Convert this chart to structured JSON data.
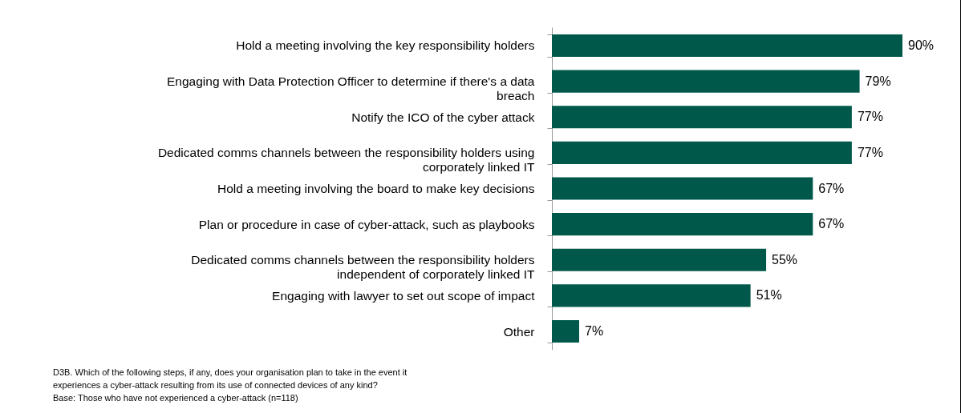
{
  "chart_data": {
    "type": "bar",
    "orientation": "horizontal",
    "categories": [
      "Hold a meeting involving the key responsibility holders",
      "Engaging with Data Protection Officer to determine if there's a data breach",
      "Notify the ICO of the cyber attack",
      "Dedicated comms channels between the responsibility holders using corporately linked IT",
      "Hold a meeting involving the board to make key decisions",
      "Plan or procedure in case of cyber-attack, such as playbooks",
      "Dedicated comms channels between the responsibility holders independent of corporately linked IT",
      "Engaging with lawyer to set out scope of impact",
      "Other"
    ],
    "values": [
      90,
      79,
      77,
      77,
      67,
      67,
      55,
      51,
      7
    ],
    "value_labels": [
      "90%",
      "79%",
      "77%",
      "77%",
      "67%",
      "67%",
      "55%",
      "51%",
      "7%"
    ],
    "color": "#00584a",
    "annotations": [
      "D3B.  Which of the following steps, if any, does your organisation plan to take in the event it",
      "experiences a cyber-attack resulting from its use of connected devices of any kind?",
      "Base: Those who have not experienced a cyber-attack (n=118)"
    ]
  }
}
